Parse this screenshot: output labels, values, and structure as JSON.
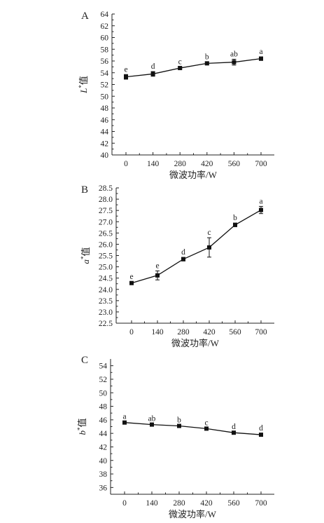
{
  "chart_data": [
    {
      "type": "line",
      "panel": "A",
      "x": [
        0,
        140,
        280,
        420,
        560,
        700
      ],
      "xticks": [
        "0",
        "140",
        "280",
        "420",
        "560",
        "700"
      ],
      "xlabel": "微波功率/W",
      "ylabel": "L*值",
      "ylabel_main": "L",
      "ylabel_sup": "*",
      "ylabel_suffix": "值",
      "ylim": [
        40,
        64
      ],
      "ytick_step": 2,
      "yticks": [
        "40",
        "42",
        "44",
        "46",
        "48",
        "50",
        "52",
        "54",
        "56",
        "58",
        "60",
        "62",
        "64"
      ],
      "series": [
        {
          "values": [
            53.3,
            53.8,
            54.8,
            55.6,
            55.8,
            56.4
          ],
          "errors": [
            0.4,
            0.4,
            0.2,
            0.2,
            0.5,
            0.3
          ],
          "labels": [
            "e",
            "d",
            "c",
            "b",
            "ab",
            "a"
          ]
        }
      ],
      "grid": false
    },
    {
      "type": "line",
      "panel": "B",
      "x": [
        0,
        140,
        280,
        420,
        560,
        700
      ],
      "xticks": [
        "0",
        "140",
        "280",
        "420",
        "560",
        "700"
      ],
      "xlabel": "微波功率/W",
      "ylabel": "a*值",
      "ylabel_main": "a",
      "ylabel_sup": "*",
      "ylabel_suffix": "值",
      "ylim": [
        22.5,
        28.5
      ],
      "ytick_step": 0.5,
      "yticks": [
        "22.5",
        "23.0",
        "23.5",
        "24.0",
        "24.5",
        "25.0",
        "25.5",
        "26.0",
        "26.5",
        "27.0",
        "27.5",
        "28.0",
        "28.5"
      ],
      "series": [
        {
          "values": [
            24.28,
            24.62,
            25.34,
            25.86,
            26.86,
            27.52
          ],
          "errors": [
            0.06,
            0.2,
            0.08,
            0.43,
            0.08,
            0.16
          ],
          "labels": [
            "e",
            "e",
            "d",
            "c",
            "b",
            "a"
          ]
        }
      ],
      "grid": false
    },
    {
      "type": "line",
      "panel": "C",
      "x": [
        0,
        140,
        280,
        420,
        560,
        700
      ],
      "xticks": [
        "0",
        "140",
        "280",
        "420",
        "560",
        "700"
      ],
      "xlabel": "微波功率/W",
      "ylabel": "b*值",
      "ylabel_main": "b",
      "ylabel_sup": "*",
      "ylabel_suffix": "值",
      "ylim": [
        35,
        55
      ],
      "ytick_step": 2,
      "yticks": [
        "36",
        "38",
        "40",
        "42",
        "44",
        "46",
        "48",
        "50",
        "52",
        "54"
      ],
      "series": [
        {
          "values": [
            45.6,
            45.3,
            45.1,
            44.7,
            44.1,
            43.8
          ],
          "errors": [
            0.1,
            0.1,
            0.1,
            0.1,
            0.1,
            0.2
          ],
          "labels": [
            "a",
            "ab",
            "b",
            "c",
            "d",
            "d"
          ]
        }
      ],
      "grid": false
    }
  ]
}
